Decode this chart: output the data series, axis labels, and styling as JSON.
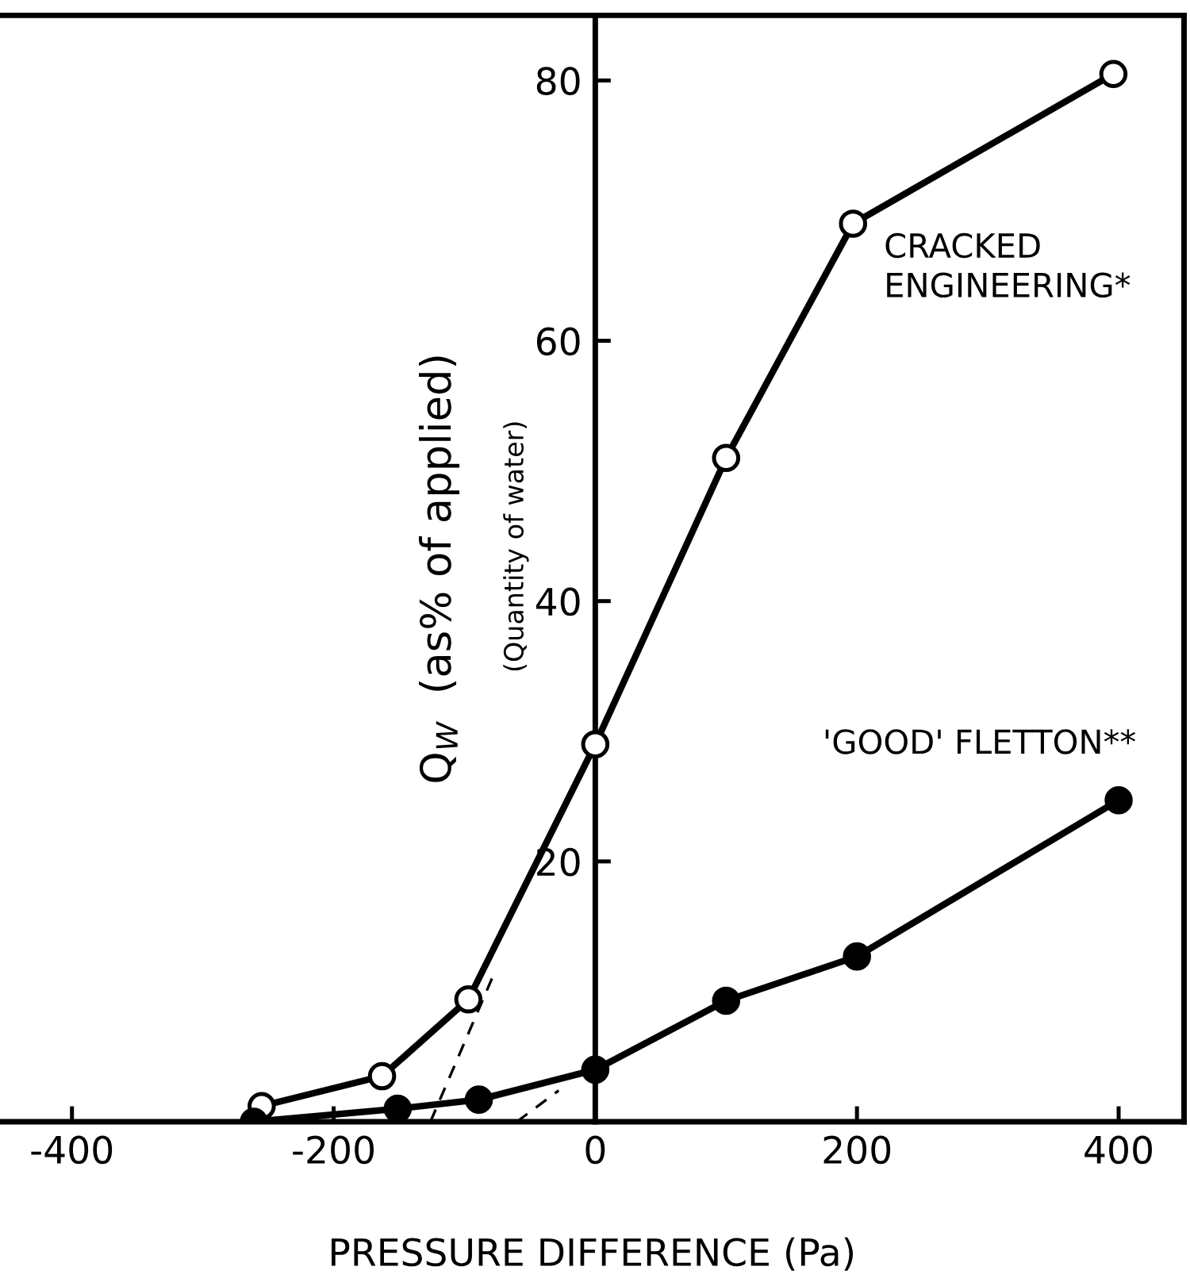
{
  "chart_data": {
    "type": "line",
    "xlabel": "PRESSURE DIFFERENCE (Pa)",
    "ylabel": "Q$_{W}$  (as% of applied)",
    "annotations": [
      "(Quantity of water)"
    ],
    "xlim": [
      -455,
      450
    ],
    "ylim": [
      0,
      85
    ],
    "xticks": [
      -400,
      -200,
      0,
      200,
      400
    ],
    "yticks": [
      {
        "value": 0,
        "label": null
      },
      20,
      40,
      60,
      80
    ],
    "grid": false,
    "legend": false,
    "series": [
      {
        "name": "CRACKED\nENGINEERING*",
        "color": "#000000",
        "marker": "circle",
        "colors": [
          "#ffffff",
          "#ffffff",
          "#ffffff",
          "#ffffff",
          "#ffffff",
          "#ffffff",
          "#ffffff"
        ],
        "line_style": "solid",
        "x": [
          -255,
          -163,
          -97,
          0,
          100,
          197,
          396
        ],
        "values": [
          1.2,
          3.5,
          9.4,
          29,
          51,
          69,
          80.5
        ]
      },
      {
        "name": "'GOOD' FLETTON**",
        "color": "#000000",
        "marker": "circle",
        "colors": [
          "#000000",
          "#000000",
          "#000000",
          "#000000",
          "#000000",
          "#000000",
          "#000000"
        ],
        "line_style": "solid",
        "x": [
          -261,
          -151,
          -89,
          0,
          100,
          200,
          400
        ],
        "values": [
          0,
          1.0,
          1.7,
          4.0,
          9.3,
          12.7,
          24.7
        ]
      },
      {
        "color": "#000000",
        "marker": "none",
        "line_style": "dashed",
        "x": [
          -126,
          -79
        ],
        "values": [
          0,
          11
        ]
      },
      {
        "color": "#000000",
        "marker": "none",
        "line_style": "dashed",
        "x": [
          -60,
          -28
        ],
        "values": [
          0,
          2.4
        ]
      }
    ]
  }
}
